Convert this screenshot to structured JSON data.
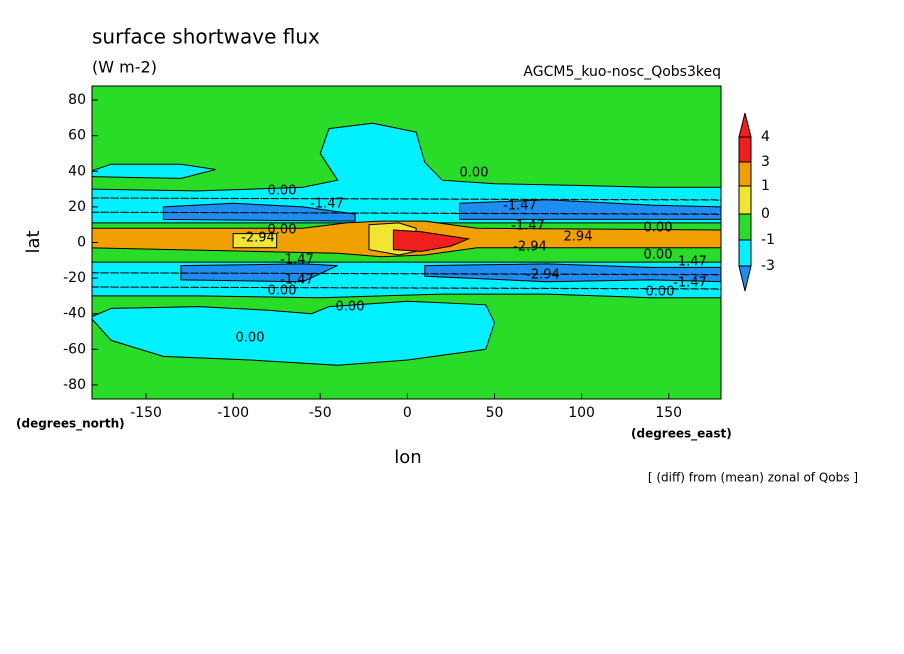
{
  "chart_data": {
    "type": "contour",
    "title": "surface shortwave flux",
    "subtitle": "(W m-2)",
    "experiment": "AGCM5_kuo-nosc_Qobs3keq",
    "x_label": "lon",
    "y_label": "lat",
    "x_units": "(degrees_east)",
    "y_units": "(degrees_north)",
    "note": "[ (diff) from (mean) zonal of Qobs ]",
    "xlim": [
      -181,
      180
    ],
    "ylim": [
      -87.9,
      87.9
    ],
    "xticks": [
      -150,
      -100,
      -50,
      0,
      50,
      100,
      150
    ],
    "yticks": [
      -80,
      -60,
      -40,
      -20,
      0,
      20,
      40,
      60,
      80
    ],
    "levels": [
      -3,
      -1,
      0,
      1,
      3,
      4
    ],
    "colors": [
      "#1e8cf0",
      "#00f0ff",
      "#28dc28",
      "#f0e632",
      "#f0a000",
      "#f01e1e",
      "#f01e1e"
    ],
    "below_color": "#1e8cf0",
    "contour_labels": [
      {
        "value": 0,
        "label": "0.00"
      },
      {
        "value": -1.47,
        "label": "-1.47"
      },
      {
        "value": 0,
        "label": "0.00"
      },
      {
        "value": -1.47,
        "label": "-1.47"
      },
      {
        "value": -1.47,
        "label": "-1.47"
      },
      {
        "value": -2.94,
        "label": "-2.94"
      },
      {
        "value": 0,
        "label": "0.00"
      },
      {
        "value": 2.94,
        "label": "2.94"
      },
      {
        "value": -2.94,
        "label": "-2.94"
      },
      {
        "value": 0,
        "label": "0.00"
      },
      {
        "value": 0,
        "label": "0.00"
      },
      {
        "value": -1.47,
        "label": "-1.47"
      },
      {
        "value": -1.47,
        "label": "-1.47"
      },
      {
        "value": -1.47,
        "label": "-1.47"
      },
      {
        "value": 0,
        "label": "0.00"
      },
      {
        "value": -2.94,
        "label": "-2.94"
      },
      {
        "value": 0,
        "label": "0.00"
      },
      {
        "value": 0,
        "label": "0.00"
      },
      {
        "value": 0,
        "label": "0.00"
      },
      {
        "value": -1.47,
        "label": "-1.47"
      }
    ]
  }
}
